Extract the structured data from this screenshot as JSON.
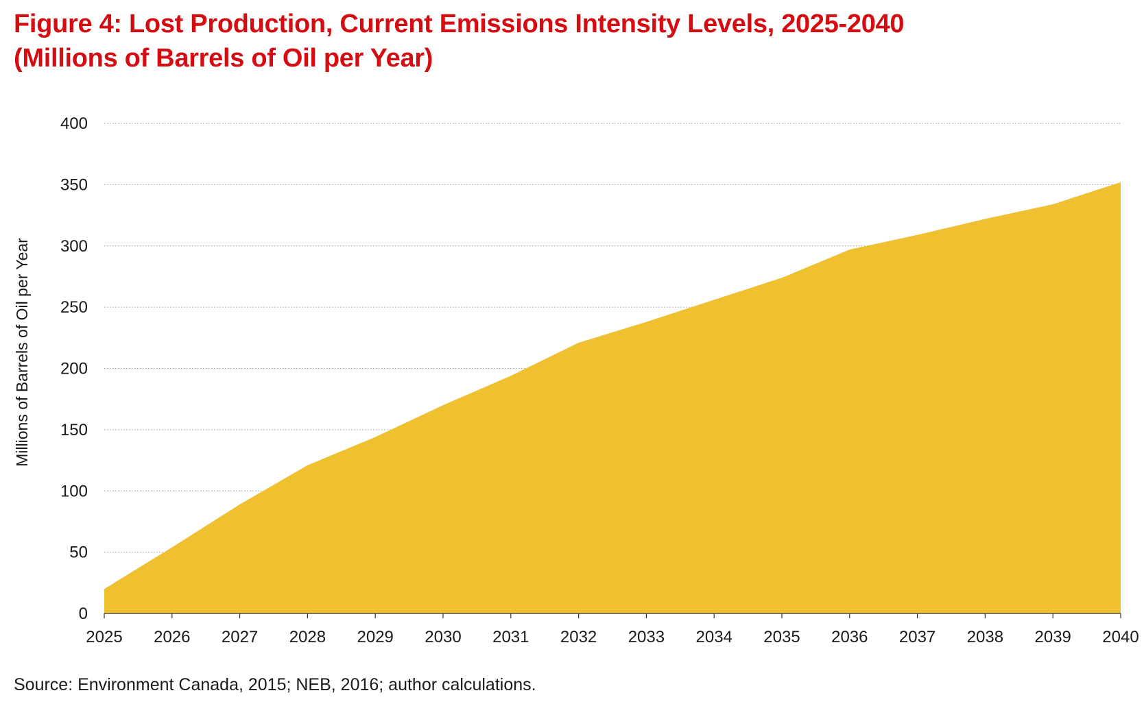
{
  "figure": {
    "title_line1": "Figure 4: Lost Production, Current Emissions Intensity Levels, 2025-2040",
    "title_line2": "(Millions of Barrels of Oil per Year)",
    "source": "Source: Environment Canada, 2015; NEB, 2016; author calculations."
  },
  "colors": {
    "title": "#d40d12",
    "area_fill": "#efc02f",
    "gridline": "#9a9a9a",
    "text": "#1a1a1a"
  },
  "chart_data": {
    "type": "area",
    "title": "Figure 4: Lost Production, Current Emissions Intensity Levels, 2025-2040",
    "subtitle": "(Millions of Barrels of Oil per Year)",
    "xlabel": "",
    "ylabel": "Millions of Barrels of Oil per Year",
    "x": [
      "2025",
      "2026",
      "2027",
      "2028",
      "2029",
      "2030",
      "2031",
      "2032",
      "2033",
      "2034",
      "2035",
      "2036",
      "2037",
      "2038",
      "2039",
      "2040"
    ],
    "values": [
      20,
      54,
      89,
      121,
      144,
      170,
      194,
      221,
      238,
      256,
      274,
      297,
      309,
      322,
      334,
      352
    ],
    "ylim": [
      0,
      400
    ],
    "yticks": [
      0,
      50,
      100,
      150,
      200,
      250,
      300,
      350,
      400
    ],
    "grid": "horizontal dotted",
    "legend": "none"
  }
}
